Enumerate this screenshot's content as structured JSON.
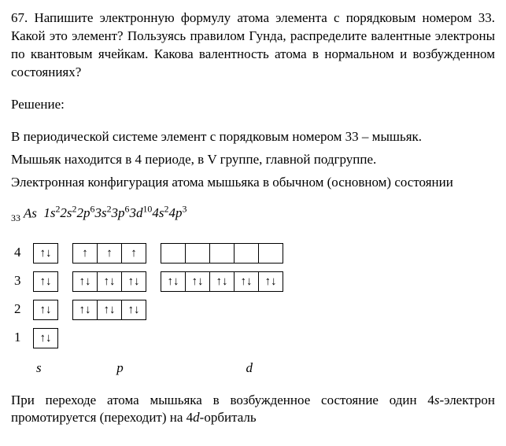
{
  "problem": {
    "number": "67.",
    "text": "Напишите электронную формулу атома элемента с порядковым номером 33. Какой это элемент? Пользуясь правилом Гунда, распределите валентные электроны по квантовым ячейкам. Какова валентность атома в нормальном и возбужденном состояниях?"
  },
  "solution_label": "Решение:",
  "solution_lines": [
    "В периодической системе элемент с порядковым номером 33 – мышьяк.",
    "Мышьяк находится в 4 периоде, в V группе, главной подгруппе.",
    "Электронная конфигурация атома мышьяка в обычном (основном) состоянии"
  ],
  "formula": {
    "prefix_sub": "33",
    "element": "As",
    "terms": [
      {
        "shell": "1",
        "orb": "s",
        "pow": "2"
      },
      {
        "shell": "2",
        "orb": "s",
        "pow": "2"
      },
      {
        "shell": "2",
        "orb": "p",
        "pow": "6"
      },
      {
        "shell": "3",
        "orb": "s",
        "pow": "2"
      },
      {
        "shell": "3",
        "orb": "p",
        "pow": "6"
      },
      {
        "shell": "3",
        "orb": "d",
        "pow": "10"
      },
      {
        "shell": "4",
        "orb": "s",
        "pow": "2"
      },
      {
        "shell": "4",
        "orb": "p",
        "pow": "3"
      }
    ]
  },
  "orbitals": {
    "rows": [
      {
        "n": "4",
        "s": [
          "↑↓"
        ],
        "p": [
          "↑",
          "↑",
          "↑"
        ],
        "d": [
          "",
          "",
          "",
          "",
          ""
        ]
      },
      {
        "n": "3",
        "s": [
          "↑↓"
        ],
        "p": [
          "↑↓",
          "↑↓",
          "↑↓"
        ],
        "d": [
          "↑↓",
          "↑↓",
          "↑↓",
          "↑↓",
          "↑↓"
        ]
      },
      {
        "n": "2",
        "s": [
          "↑↓"
        ],
        "p": [
          "↑↓",
          "↑↓",
          "↑↓"
        ]
      },
      {
        "n": "1",
        "s": [
          "↑↓"
        ]
      }
    ],
    "axis": {
      "s": "s",
      "p": "p",
      "d": "d"
    }
  },
  "tail": "При переходе атома мышьяка в возбужденное состояние один 4s-электрон промотируется (переходит) на 4d-орбиталь"
}
